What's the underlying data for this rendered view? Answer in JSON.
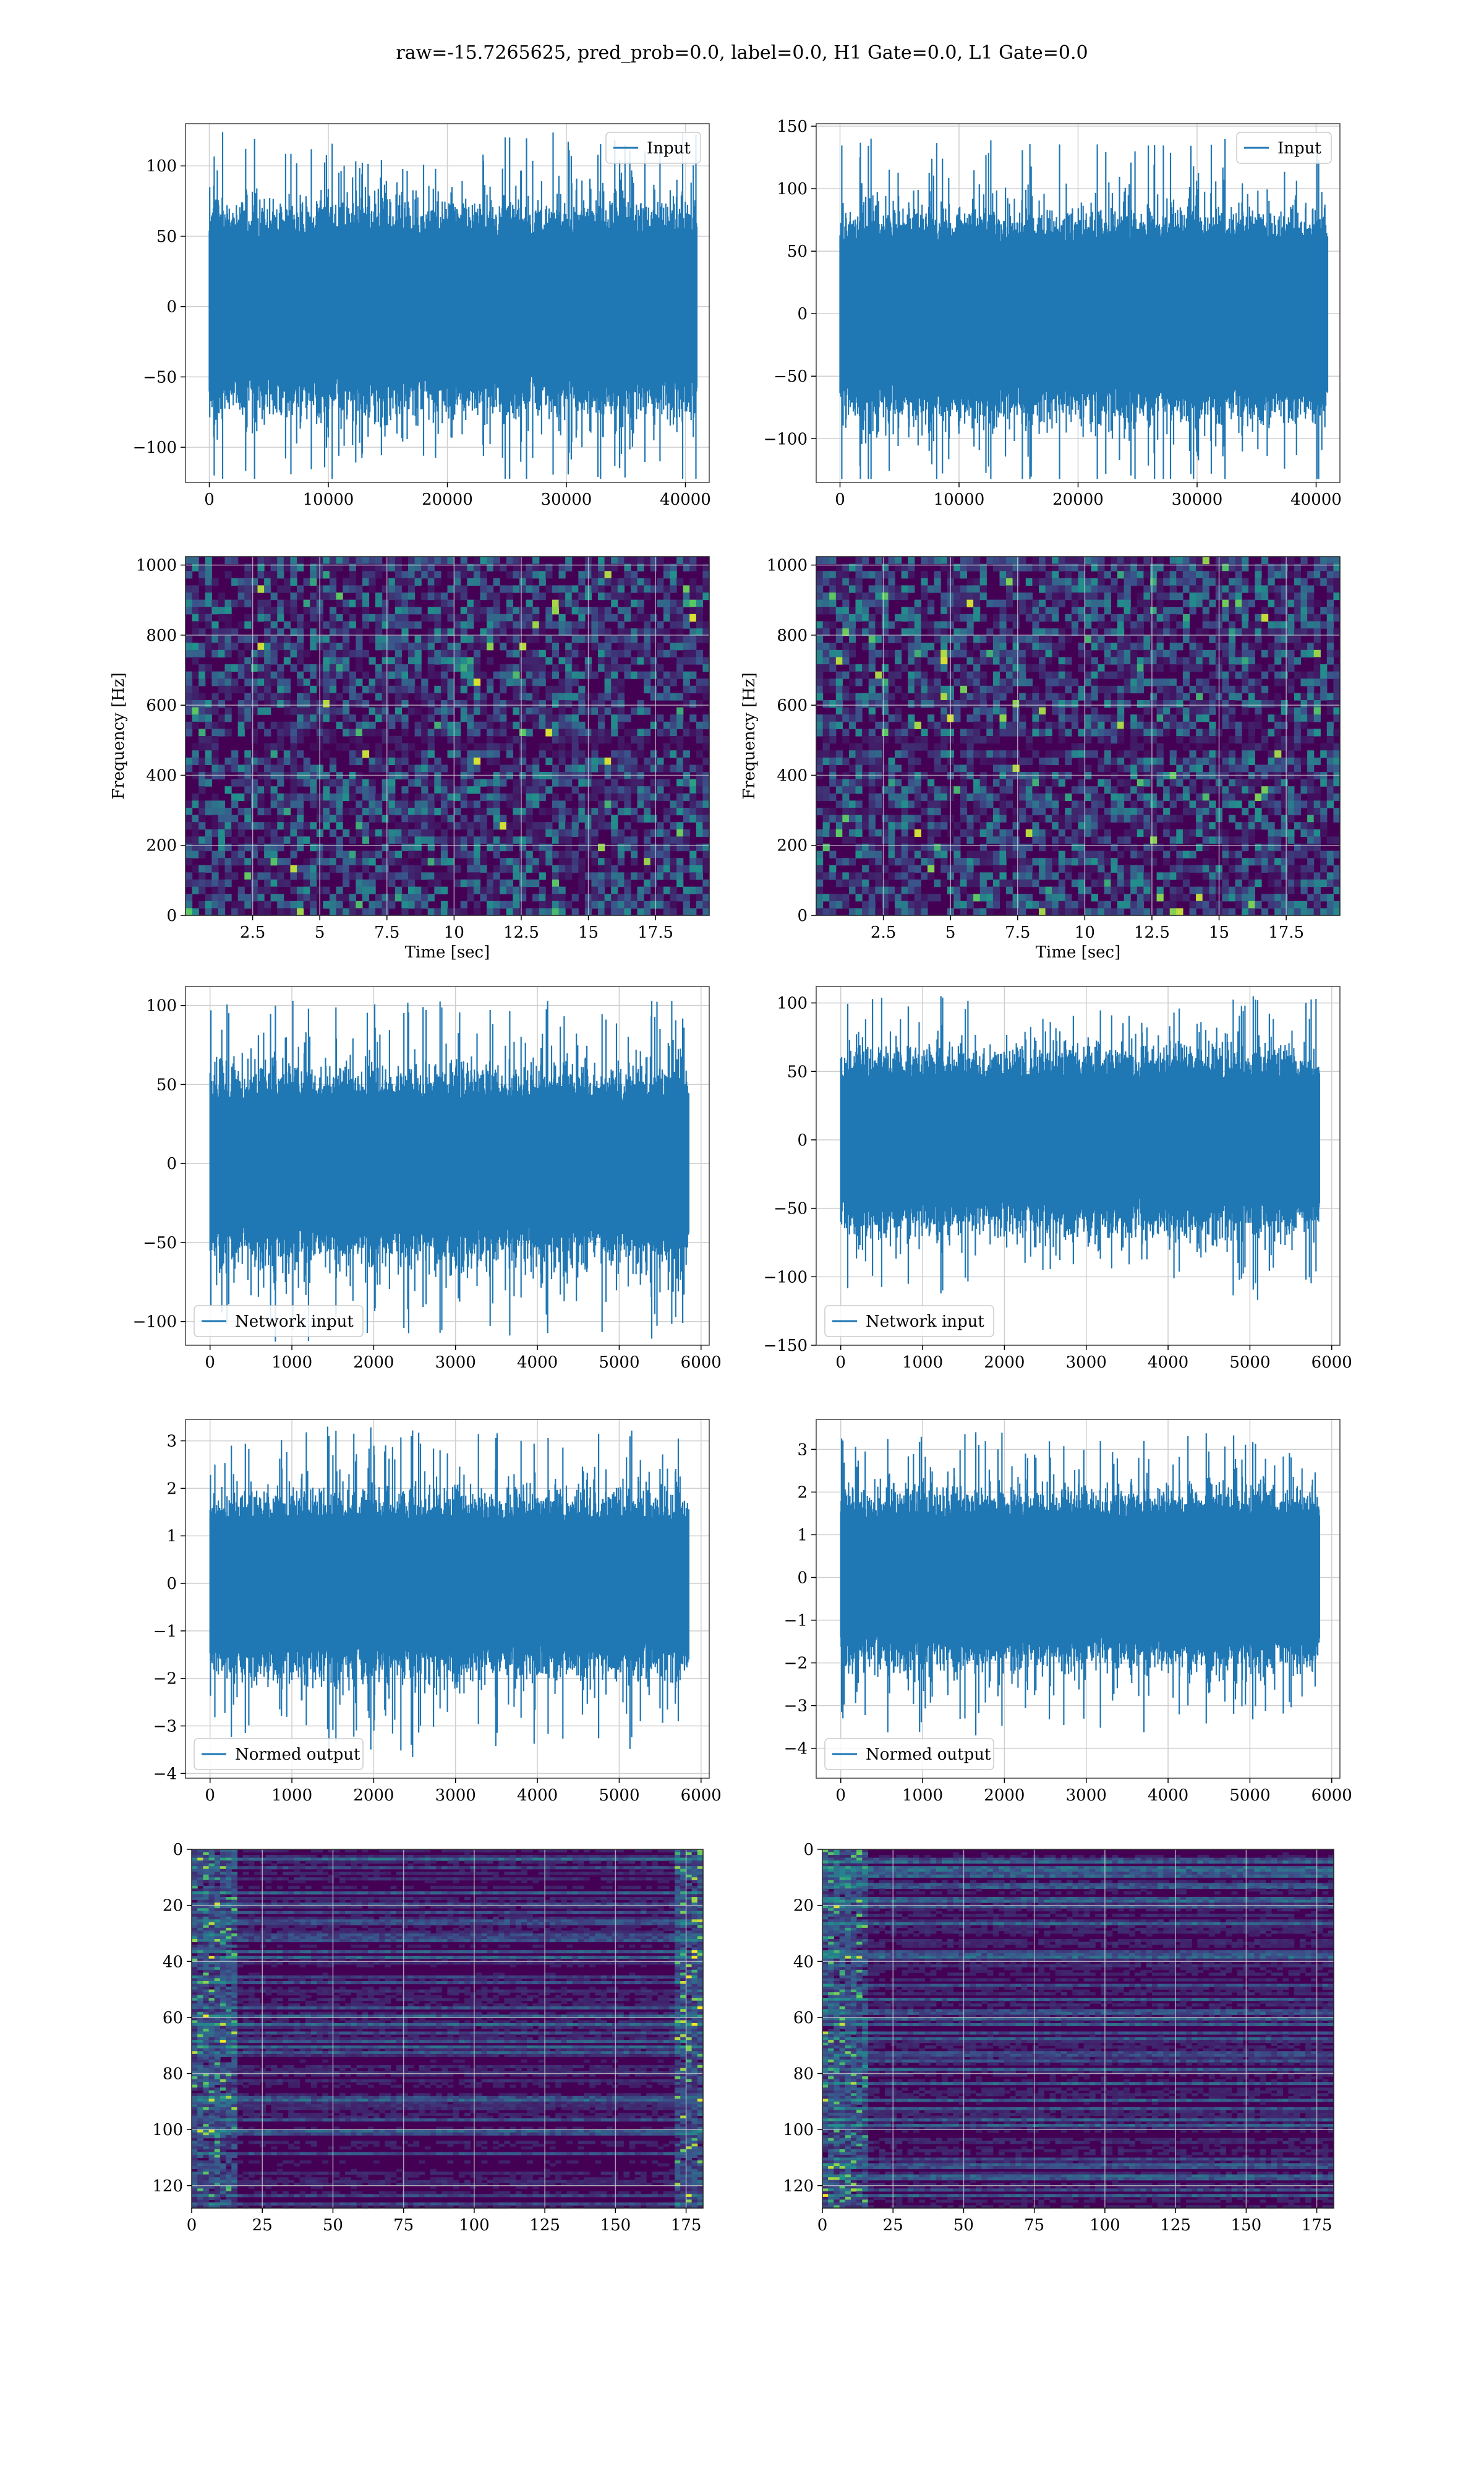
{
  "figure": {
    "title": "raw=-15.7265625, pred_prob=0.0, label=0.0, H1 Gate=0.0, L1 Gate=0.0"
  },
  "colors": {
    "line": "#1f77b4",
    "grid": "#cfcfcf",
    "axis": "#444444",
    "viridis_dark": "#440154",
    "viridis_mid": "#21918c",
    "viridis_bright": "#fde725"
  },
  "chart_data": [
    {
      "type": "line",
      "panel": "row1-left",
      "series": [
        {
          "name": "Input"
        }
      ],
      "xlim": [
        -2000,
        42000
      ],
      "ylim": [
        -125,
        130
      ],
      "xticks": [
        0,
        10000,
        20000,
        30000,
        40000
      ],
      "yticks": [
        -100,
        -50,
        0,
        50,
        100
      ],
      "data_range": [
        0,
        40960
      ],
      "envelope": {
        "typical": 62,
        "peak": 124
      },
      "legend_loc": "upper right",
      "grid": true
    },
    {
      "type": "line",
      "panel": "row1-right",
      "series": [
        {
          "name": "Input"
        }
      ],
      "xlim": [
        -2000,
        42000
      ],
      "ylim": [
        -135,
        152
      ],
      "xticks": [
        0,
        10000,
        20000,
        30000,
        40000
      ],
      "yticks": [
        -100,
        -50,
        0,
        50,
        100,
        150
      ],
      "data_range": [
        0,
        40960
      ],
      "envelope": {
        "typical": 70,
        "peak": 140
      },
      "legend_loc": "upper right",
      "grid": true
    },
    {
      "type": "heatmap",
      "panel": "row2-left",
      "xlim": [
        0,
        19.5
      ],
      "ylim": [
        0,
        1024
      ],
      "xticks": [
        2.5,
        5.0,
        7.5,
        10.0,
        12.5,
        15.0,
        17.5
      ],
      "ytick_vals": [
        0,
        200,
        400,
        600,
        800,
        1000
      ],
      "xlabel": "Time [sec]",
      "ylabel": "Frequency [Hz]",
      "colormap": "viridis",
      "grid": true
    },
    {
      "type": "heatmap",
      "panel": "row2-right",
      "xlim": [
        0,
        19.5
      ],
      "ylim": [
        0,
        1024
      ],
      "xticks": [
        2.5,
        5.0,
        7.5,
        10.0,
        12.5,
        15.0,
        17.5
      ],
      "ytick_vals": [
        0,
        200,
        400,
        600,
        800,
        1000
      ],
      "xlabel": "Time [sec]",
      "ylabel": "Frequency [Hz]",
      "colormap": "viridis",
      "grid": true
    },
    {
      "type": "line",
      "panel": "row3-left",
      "series": [
        {
          "name": "Network input"
        }
      ],
      "xlim": [
        -300,
        6100
      ],
      "ylim": [
        -115,
        112
      ],
      "xticks": [
        0,
        1000,
        2000,
        3000,
        4000,
        5000,
        6000
      ],
      "yticks": [
        -100,
        -50,
        0,
        50,
        100
      ],
      "data_range": [
        0,
        5850
      ],
      "envelope": {
        "typical": 50,
        "peak": 103
      },
      "legend_loc": "lower left",
      "grid": true
    },
    {
      "type": "line",
      "panel": "row3-right",
      "series": [
        {
          "name": "Network input"
        }
      ],
      "xlim": [
        -300,
        6100
      ],
      "ylim": [
        -150,
        112
      ],
      "xticks": [
        0,
        1000,
        2000,
        3000,
        4000,
        5000,
        6000
      ],
      "yticks": [
        -150,
        -100,
        -50,
        0,
        50,
        100
      ],
      "data_range": [
        0,
        5850
      ],
      "envelope": {
        "typical": 55,
        "peak": 105
      },
      "legend_loc": "lower left",
      "grid": true
    },
    {
      "type": "line",
      "panel": "row4-left",
      "series": [
        {
          "name": "Normed output"
        }
      ],
      "xlim": [
        -300,
        6100
      ],
      "ylim": [
        -4.1,
        3.45
      ],
      "xticks": [
        0,
        1000,
        2000,
        3000,
        4000,
        5000,
        6000
      ],
      "yticks": [
        -4,
        -3,
        -2,
        -1,
        0,
        1,
        2,
        3
      ],
      "data_range": [
        0,
        5850
      ],
      "envelope": {
        "typical": 1.6,
        "peak": 3.3
      },
      "legend_loc": "lower left",
      "grid": true
    },
    {
      "type": "line",
      "panel": "row4-right",
      "series": [
        {
          "name": "Normed output"
        }
      ],
      "xlim": [
        -300,
        6100
      ],
      "ylim": [
        -4.7,
        3.7
      ],
      "xticks": [
        0,
        1000,
        2000,
        3000,
        4000,
        5000,
        6000
      ],
      "yticks": [
        -4,
        -3,
        -2,
        -1,
        0,
        1,
        2,
        3
      ],
      "data_range": [
        0,
        5850
      ],
      "envelope": {
        "typical": 1.7,
        "peak": 3.4
      },
      "legend_loc": "lower left",
      "grid": true
    },
    {
      "type": "heatmap",
      "panel": "row5-left",
      "xlim": [
        0,
        181
      ],
      "ylim": [
        128,
        0
      ],
      "xticks": [
        0,
        25,
        50,
        75,
        100,
        125,
        150,
        175
      ],
      "ytick_vals": [
        0,
        20,
        40,
        60,
        80,
        100,
        120
      ],
      "colormap": "viridis",
      "grid": true
    },
    {
      "type": "heatmap",
      "panel": "row5-right",
      "xlim": [
        0,
        181
      ],
      "ylim": [
        128,
        0
      ],
      "xticks": [
        0,
        25,
        50,
        75,
        100,
        125,
        150,
        175
      ],
      "ytick_vals": [
        0,
        20,
        40,
        60,
        80,
        100,
        120
      ],
      "colormap": "viridis",
      "grid": true
    }
  ]
}
